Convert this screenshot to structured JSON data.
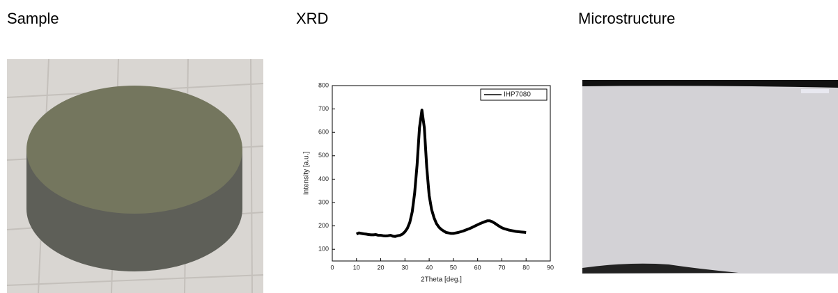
{
  "headings": [
    "Sample",
    "XRD",
    "Microstructure"
  ],
  "chart_data": {
    "type": "line",
    "xlabel": "2Theta [deg.]",
    "ylabel": "Intensity [a.u.]",
    "x": [
      10,
      11,
      12,
      13,
      14,
      15,
      16,
      17,
      18,
      19,
      20,
      21,
      22,
      23,
      24,
      25,
      26,
      27,
      28,
      29,
      30,
      31,
      32,
      33,
      34,
      35,
      36,
      37,
      38,
      39,
      40,
      41,
      42,
      43,
      44,
      45,
      46,
      47,
      48,
      49,
      50,
      51,
      52,
      53,
      54,
      55,
      56,
      57,
      58,
      59,
      60,
      61,
      62,
      63,
      64,
      65,
      66,
      67,
      68,
      69,
      70,
      71,
      72,
      73,
      74,
      75,
      76,
      77,
      78,
      79,
      80
    ],
    "series": [
      {
        "name": "IHP7080",
        "color": "#000000",
        "values": [
          165,
          170,
          168,
          166,
          165,
          163,
          162,
          162,
          163,
          160,
          160,
          158,
          157,
          158,
          160,
          156,
          155,
          158,
          160,
          165,
          175,
          190,
          215,
          260,
          340,
          460,
          620,
          695,
          620,
          450,
          330,
          270,
          235,
          210,
          195,
          185,
          178,
          172,
          170,
          168,
          168,
          170,
          172,
          175,
          178,
          182,
          186,
          190,
          195,
          200,
          205,
          210,
          214,
          218,
          222,
          222,
          218,
          212,
          205,
          198,
          192,
          188,
          185,
          182,
          180,
          178,
          176,
          175,
          174,
          173,
          172
        ]
      }
    ],
    "xlim": [
      0,
      90
    ],
    "ylim": [
      50,
      800
    ],
    "xticks": [
      0,
      10,
      20,
      30,
      40,
      50,
      60,
      70,
      80,
      90
    ],
    "yticks": [
      100,
      200,
      300,
      400,
      500,
      600,
      700,
      800
    ],
    "legend": "upper right"
  }
}
